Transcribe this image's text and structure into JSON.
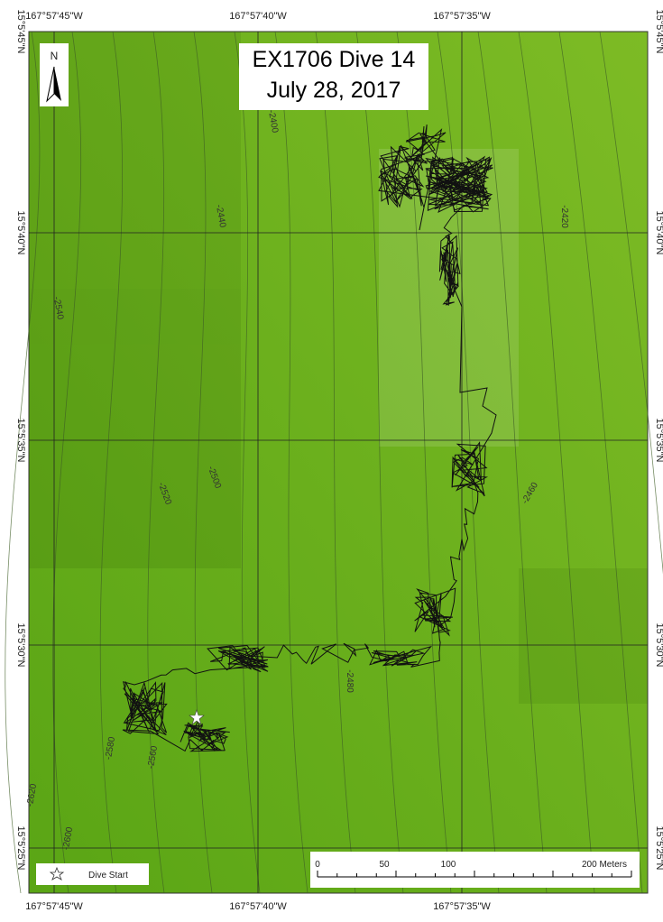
{
  "title": [
    "EX1706 Dive 14",
    "July 28, 2017"
  ],
  "north": "N",
  "longitude_labels": [
    "167°57'45\"W",
    "167°57'40\"W",
    "167°57'35\"W"
  ],
  "latitude_labels": [
    "15°5'45\"N",
    "15°5'40\"N",
    "15°5'35\"N",
    "15°5'30\"N",
    "15°5'25\"N"
  ],
  "contour_labels": [
    "-2400",
    "-2440",
    "-2420",
    "-2540",
    "-2500",
    "-2520",
    "-2460",
    "-2480",
    "-2580",
    "-2560",
    "-2620",
    "-2600"
  ],
  "legend": "Dive Start",
  "scale_bar": [
    "0",
    "50",
    "100",
    "200 Meters"
  ]
}
